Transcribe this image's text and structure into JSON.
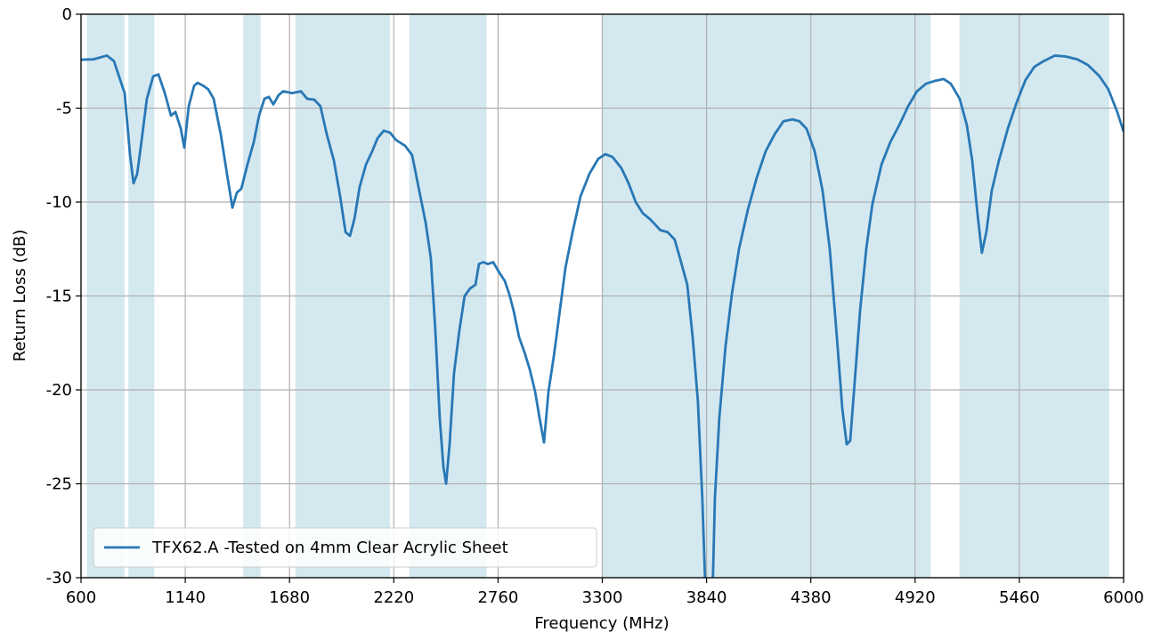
{
  "chart_data": {
    "type": "line",
    "xlabel": "Frequency (MHz)",
    "ylabel": "Return Loss (dB)",
    "xlim": [
      600,
      6000
    ],
    "ylim": [
      -30,
      0
    ],
    "xticks": [
      600,
      1140,
      1680,
      2220,
      2760,
      3300,
      3840,
      4380,
      4920,
      5460,
      6000
    ],
    "yticks": [
      0,
      -5,
      -10,
      -15,
      -20,
      -25,
      -30
    ],
    "grid": true,
    "legend": "lower left",
    "bands": [
      [
        630,
        825
      ],
      [
        845,
        980
      ],
      [
        1440,
        1530
      ],
      [
        1710,
        2200
      ],
      [
        2300,
        2700
      ],
      [
        3300,
        5000
      ],
      [
        5150,
        5925
      ]
    ],
    "band_color": "#d4e8f0",
    "x": [
      600,
      665,
      734,
      771,
      803,
      826,
      854,
      872,
      891,
      909,
      941,
      974,
      1001,
      1034,
      1066,
      1089,
      1117,
      1135,
      1158,
      1186,
      1204,
      1232,
      1259,
      1287,
      1324,
      1356,
      1384,
      1407,
      1430,
      1462,
      1495,
      1522,
      1550,
      1573,
      1596,
      1624,
      1647,
      1693,
      1739,
      1771,
      1808,
      1840,
      1873,
      1910,
      1942,
      1970,
      1993,
      2016,
      2043,
      2076,
      2108,
      2136,
      2168,
      2200,
      2232,
      2278,
      2315,
      2348,
      2385,
      2412,
      2435,
      2458,
      2477,
      2491,
      2509,
      2532,
      2560,
      2587,
      2615,
      2643,
      2661,
      2684,
      2707,
      2735,
      2763,
      2795,
      2818,
      2841,
      2869,
      2897,
      2924,
      2952,
      2975,
      2998,
      3021,
      3049,
      3076,
      3109,
      3146,
      3187,
      3233,
      3279,
      3316,
      3353,
      3399,
      3436,
      3473,
      3510,
      3546,
      3574,
      3601,
      3638,
      3675,
      3708,
      3740,
      3768,
      3795,
      3818,
      3845,
      3873,
      3883,
      3906,
      3938,
      3971,
      4008,
      4054,
      4100,
      4146,
      4192,
      4238,
      4284,
      4321,
      4358,
      4400,
      4441,
      4478,
      4515,
      4543,
      4566,
      4584,
      4607,
      4635,
      4667,
      4699,
      4746,
      4792,
      4838,
      4884,
      4930,
      4976,
      5022,
      5068,
      5105,
      5151,
      5188,
      5216,
      5243,
      5266,
      5289,
      5317,
      5354,
      5400,
      5446,
      5492,
      5538,
      5585,
      5645,
      5700,
      5760,
      5815,
      5875,
      5921,
      5967,
      6000
    ],
    "series": [
      {
        "name": "TFX62.A -Tested on 4mm Clear Acrylic Sheet",
        "color": "#2878b5",
        "values": [
          -2.42,
          -2.4,
          -2.2,
          -2.5,
          -3.5,
          -4.2,
          -7.5,
          -9.0,
          -8.5,
          -7.1,
          -4.5,
          -3.3,
          -3.2,
          -4.2,
          -5.4,
          -5.2,
          -6.1,
          -7.1,
          -4.9,
          -3.8,
          -3.65,
          -3.8,
          -4.0,
          -4.5,
          -6.4,
          -8.5,
          -10.3,
          -9.5,
          -9.3,
          -8.0,
          -6.8,
          -5.4,
          -4.5,
          -4.4,
          -4.8,
          -4.3,
          -4.1,
          -4.2,
          -4.1,
          -4.5,
          -4.55,
          -4.9,
          -6.4,
          -7.8,
          -9.7,
          -11.6,
          -11.8,
          -10.9,
          -9.2,
          -8.0,
          -7.3,
          -6.6,
          -6.2,
          -6.3,
          -6.7,
          -7.0,
          -7.5,
          -9.2,
          -11.1,
          -13.0,
          -16.8,
          -21.5,
          -24.1,
          -25.0,
          -22.9,
          -19.1,
          -16.8,
          -15.0,
          -14.6,
          -14.4,
          -13.3,
          -13.2,
          -13.3,
          -13.2,
          -13.7,
          -14.2,
          -14.9,
          -15.8,
          -17.2,
          -18.0,
          -18.9,
          -20.1,
          -21.5,
          -22.8,
          -20.1,
          -18.2,
          -16.1,
          -13.5,
          -11.6,
          -9.7,
          -8.5,
          -7.7,
          -7.45,
          -7.6,
          -8.2,
          -9.0,
          -10.0,
          -10.6,
          -10.9,
          -11.2,
          -11.5,
          -11.6,
          -12.0,
          -13.2,
          -14.4,
          -17.2,
          -20.6,
          -25.8,
          -34,
          -30,
          -25.8,
          -21.5,
          -17.7,
          -14.9,
          -12.5,
          -10.4,
          -8.7,
          -7.3,
          -6.4,
          -5.7,
          -5.6,
          -5.7,
          -6.1,
          -7.3,
          -9.4,
          -12.5,
          -17.2,
          -21.0,
          -22.9,
          -22.7,
          -19.6,
          -15.8,
          -12.5,
          -10.1,
          -8.0,
          -6.8,
          -5.9,
          -4.9,
          -4.1,
          -3.7,
          -3.55,
          -3.45,
          -3.7,
          -4.5,
          -5.9,
          -7.8,
          -10.6,
          -12.7,
          -11.6,
          -9.4,
          -7.8,
          -6.1,
          -4.7,
          -3.5,
          -2.8,
          -2.5,
          -2.2,
          -2.25,
          -2.4,
          -2.7,
          -3.3,
          -4.0,
          -5.2,
          -6.25
        ]
      }
    ]
  }
}
